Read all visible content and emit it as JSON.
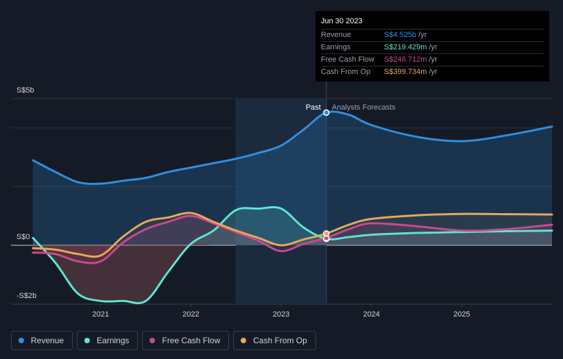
{
  "colors": {
    "revenue": "#2f8fe0",
    "earnings": "#5ee6cf",
    "fcf": "#c94a8e",
    "cfo": "#e8a85a",
    "background": "#151b26"
  },
  "tooltip": {
    "date": "Jun 30 2023",
    "rows": [
      {
        "label": "Revenue",
        "value": "S$4.525b",
        "unit": "/yr",
        "color": "#2f8fe0"
      },
      {
        "label": "Earnings",
        "value": "S$219.429m",
        "unit": "/yr",
        "color": "#5ee6cf"
      },
      {
        "label": "Free Cash Flow",
        "value": "S$246.712m",
        "unit": "/yr",
        "color": "#c94a8e"
      },
      {
        "label": "Cash From Op",
        "value": "S$399.734m",
        "unit": "/yr",
        "color": "#e8a85a"
      }
    ]
  },
  "divider": {
    "past_label": "Past",
    "forecast_label": "Analysts Forecasts"
  },
  "legend": [
    {
      "label": "Revenue",
      "color": "#2f8fe0"
    },
    {
      "label": "Earnings",
      "color": "#5ee6cf"
    },
    {
      "label": "Free Cash Flow",
      "color": "#c94a8e"
    },
    {
      "label": "Cash From Op",
      "color": "#e8a85a"
    }
  ],
  "chart_data": {
    "type": "line",
    "title": "",
    "xlabel": "",
    "ylabel": "",
    "x_ticks": [
      "2021",
      "2022",
      "2023",
      "2024",
      "2025"
    ],
    "x_tick_values": [
      2021.0,
      2022.0,
      2023.0,
      2024.0,
      2025.0
    ],
    "xlim": [
      2020.25,
      2026.0
    ],
    "y_tick_labels": [
      "S$5b",
      "S$0",
      "-S$2b"
    ],
    "y_tick_values": [
      5,
      0,
      -2
    ],
    "ylim": [
      -2,
      5
    ],
    "units": "S$ billions",
    "past_end": 2023.5,
    "highlight_range": [
      2022.5,
      2023.5
    ],
    "series": [
      {
        "name": "Revenue",
        "key": "revenue",
        "x": [
          2020.25,
          2020.5,
          2020.75,
          2021.0,
          2021.25,
          2021.5,
          2021.75,
          2022.0,
          2022.25,
          2022.5,
          2022.75,
          2023.0,
          2023.25,
          2023.5,
          2023.75,
          2024.0,
          2024.5,
          2025.0,
          2025.5,
          2026.0
        ],
        "values": [
          2.9,
          2.5,
          2.15,
          2.1,
          2.2,
          2.3,
          2.5,
          2.65,
          2.8,
          2.95,
          3.15,
          3.4,
          3.95,
          4.525,
          4.45,
          4.1,
          3.7,
          3.55,
          3.75,
          4.05
        ]
      },
      {
        "name": "Earnings",
        "key": "earnings",
        "x": [
          2020.25,
          2020.5,
          2020.75,
          2021.0,
          2021.25,
          2021.5,
          2021.75,
          2022.0,
          2022.25,
          2022.5,
          2022.75,
          2023.0,
          2023.25,
          2023.5,
          2023.75,
          2024.0,
          2024.5,
          2025.0,
          2025.5,
          2026.0
        ],
        "values": [
          0.25,
          -0.6,
          -1.65,
          -1.9,
          -1.9,
          -1.9,
          -0.9,
          0.05,
          0.5,
          1.2,
          1.25,
          1.25,
          0.6,
          0.219,
          0.28,
          0.36,
          0.42,
          0.45,
          0.48,
          0.5
        ]
      },
      {
        "name": "Free Cash Flow",
        "key": "fcf",
        "x": [
          2020.25,
          2020.5,
          2020.75,
          2021.0,
          2021.25,
          2021.5,
          2021.75,
          2022.0,
          2022.25,
          2022.5,
          2022.75,
          2023.0,
          2023.25,
          2023.5,
          2023.75,
          2024.0,
          2024.5,
          2025.0,
          2025.5,
          2026.0
        ],
        "values": [
          -0.25,
          -0.3,
          -0.55,
          -0.55,
          0.1,
          0.55,
          0.8,
          1.0,
          0.75,
          0.45,
          0.15,
          -0.2,
          0.05,
          0.247,
          0.55,
          0.75,
          0.65,
          0.5,
          0.55,
          0.7
        ]
      },
      {
        "name": "Cash From Op",
        "key": "cfo",
        "x": [
          2020.25,
          2020.5,
          2020.75,
          2021.0,
          2021.25,
          2021.5,
          2021.75,
          2022.0,
          2022.25,
          2022.5,
          2022.75,
          2023.0,
          2023.25,
          2023.5,
          2023.75,
          2024.0,
          2024.5,
          2025.0,
          2025.5,
          2026.0
        ],
        "values": [
          -0.1,
          -0.15,
          -0.3,
          -0.35,
          0.3,
          0.8,
          0.95,
          1.1,
          0.8,
          0.5,
          0.25,
          0.0,
          0.2,
          0.4,
          0.7,
          0.9,
          1.02,
          1.07,
          1.06,
          1.05
        ]
      }
    ]
  }
}
